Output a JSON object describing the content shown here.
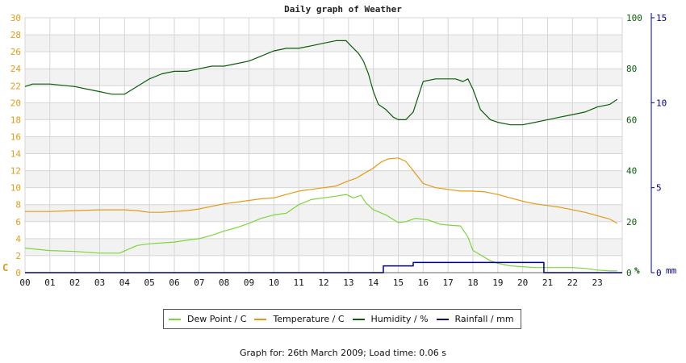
{
  "title": "Daily graph of Weather",
  "footer": "Graph for: 26th March 2009; Load time: 0.06 s",
  "legend": [
    {
      "label": "Dew Point / C",
      "color": "#7cd638"
    },
    {
      "label": "Temperature / C",
      "color": "#e69a12"
    },
    {
      "label": "Humidity / %",
      "color": "#0a5d0a"
    },
    {
      "label": "Rainfall / mm",
      "color": "#00008b"
    }
  ],
  "chart_data": {
    "type": "line",
    "x_ticks": [
      "00",
      "01",
      "02",
      "03",
      "04",
      "05",
      "06",
      "07",
      "08",
      "09",
      "10",
      "11",
      "12",
      "13",
      "14",
      "15",
      "16",
      "17",
      "18",
      "19",
      "20",
      "21",
      "22",
      "23"
    ],
    "xlim": [
      0,
      24
    ],
    "axes": {
      "left": {
        "unit_label": "C",
        "ticks": [
          "0",
          "2",
          "4",
          "6",
          "8",
          "10",
          "12",
          "14",
          "16",
          "18",
          "20",
          "22",
          "24",
          "26",
          "28",
          "30"
        ],
        "range": [
          0,
          30
        ],
        "color": "#e69a12"
      },
      "right_humidity": {
        "unit_label": "%",
        "ticks": [
          "0",
          "20",
          "40",
          "60",
          "80",
          "100"
        ],
        "range": [
          0,
          100
        ],
        "color": "#0a5d0a"
      },
      "right_rainfall": {
        "unit_label": "mm",
        "ticks": [
          "0",
          "5",
          "10",
          "15"
        ],
        "range": [
          0,
          15
        ],
        "color": "#00008b"
      }
    },
    "grid": true,
    "series": [
      {
        "name": "Dew Point / C",
        "axis": "left",
        "color": "#7cd638",
        "x": [
          0,
          0.3,
          1,
          2,
          3,
          3.8,
          4.5,
          5,
          6,
          6.7,
          7,
          7.5,
          8,
          8.5,
          9,
          9.5,
          10,
          10.5,
          11,
          11.5,
          12,
          12.5,
          12.9,
          13.2,
          13.5,
          13.7,
          14,
          14.5,
          15,
          15.3,
          15.7,
          16.2,
          16.7,
          17,
          17.5,
          17.8,
          18,
          18.3,
          18.7,
          19,
          19.5,
          20,
          20.5,
          21,
          21.5,
          22,
          22.5,
          23,
          23.5,
          23.8
        ],
        "y": [
          2.9,
          2.8,
          2.6,
          2.5,
          2.3,
          2.3,
          3.2,
          3.4,
          3.6,
          3.9,
          4.0,
          4.4,
          4.9,
          5.3,
          5.8,
          6.4,
          6.8,
          7.0,
          8.0,
          8.6,
          8.8,
          9.0,
          9.2,
          8.8,
          9.1,
          8.2,
          7.4,
          6.8,
          5.9,
          6.0,
          6.4,
          6.2,
          5.7,
          5.6,
          5.5,
          4.2,
          2.6,
          2.1,
          1.4,
          1.1,
          0.8,
          0.7,
          0.6,
          0.6,
          0.6,
          0.6,
          0.5,
          0.3,
          0.2,
          0.2
        ]
      },
      {
        "name": "Temperature / C",
        "axis": "left",
        "color": "#e69a12",
        "x": [
          0,
          1,
          2,
          3,
          4,
          4.5,
          5,
          5.5,
          6,
          6.5,
          7,
          7.5,
          8,
          8.5,
          9,
          9.5,
          10,
          10.5,
          11,
          11.5,
          12,
          12.5,
          13,
          13.3,
          13.7,
          14,
          14.3,
          14.6,
          15,
          15.3,
          15.6,
          16,
          16.5,
          17,
          17.5,
          18,
          18.5,
          19,
          19.5,
          20,
          20.5,
          21,
          21.5,
          22,
          22.5,
          23,
          23.5,
          23.8
        ],
        "y": [
          7.2,
          7.2,
          7.3,
          7.4,
          7.4,
          7.3,
          7.1,
          7.1,
          7.2,
          7.3,
          7.5,
          7.8,
          8.1,
          8.3,
          8.5,
          8.7,
          8.8,
          9.2,
          9.6,
          9.8,
          10.0,
          10.2,
          10.8,
          11.1,
          11.8,
          12.3,
          13.0,
          13.4,
          13.5,
          13.1,
          12.0,
          10.5,
          10.0,
          9.8,
          9.6,
          9.6,
          9.5,
          9.2,
          8.8,
          8.4,
          8.1,
          7.9,
          7.7,
          7.4,
          7.1,
          6.7,
          6.3,
          5.8
        ]
      },
      {
        "name": "Humidity / %",
        "axis": "right_humidity",
        "color": "#0a5d0a",
        "x": [
          0,
          0.3,
          1,
          2,
          2.5,
          3,
          3.5,
          4,
          4.5,
          5,
          5.5,
          6,
          6.5,
          7,
          7.5,
          8,
          8.5,
          9,
          9.5,
          10,
          10.5,
          11,
          11.5,
          12,
          12.5,
          12.9,
          13.1,
          13.4,
          13.6,
          13.8,
          14,
          14.2,
          14.5,
          14.8,
          15,
          15.3,
          15.6,
          16,
          16.5,
          17,
          17.3,
          17.6,
          17.8,
          18,
          18.3,
          18.7,
          19,
          19.5,
          20,
          20.5,
          21,
          21.5,
          22,
          22.5,
          23,
          23.5,
          23.8
        ],
        "y": [
          73,
          74,
          74,
          73,
          72,
          71,
          70,
          70,
          73,
          76,
          78,
          79,
          79,
          80,
          81,
          81,
          82,
          83,
          85,
          87,
          88,
          88,
          89,
          90,
          91,
          91,
          89,
          86,
          83,
          78,
          71,
          66,
          64,
          61,
          60,
          60,
          63,
          75,
          76,
          76,
          76,
          75,
          76,
          72,
          64,
          60,
          59,
          58,
          58,
          59,
          60,
          61,
          62,
          63,
          65,
          66,
          68
        ]
      },
      {
        "name": "Rainfall / mm",
        "axis": "right_rainfall",
        "color": "#00008b",
        "x": [
          0,
          14.4,
          14.4,
          15.6,
          15.6,
          20.85,
          20.85,
          24
        ],
        "y": [
          0,
          0,
          0.4,
          0.4,
          0.6,
          0.6,
          0,
          0
        ]
      }
    ]
  }
}
